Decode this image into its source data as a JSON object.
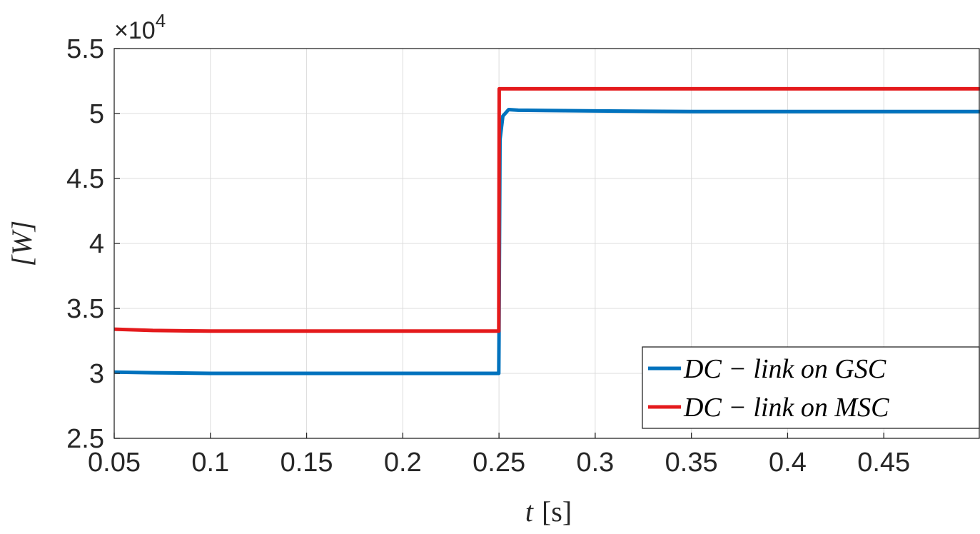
{
  "chart_data": {
    "type": "line",
    "title": "",
    "xlabel_var": "t",
    "xlabel_unit": "[s]",
    "ylabel": "[W]",
    "y_exponent_label": "×10",
    "y_exponent_power": "4",
    "xlim": [
      0.05,
      0.5
    ],
    "ylim": [
      2.5,
      5.5
    ],
    "x_ticks": [
      0.05,
      0.1,
      0.15,
      0.2,
      0.25,
      0.3,
      0.35,
      0.4,
      0.45
    ],
    "x_tick_labels": [
      "0.05",
      "0.1",
      "0.15",
      "0.2",
      "0.25",
      "0.3",
      "0.35",
      "0.4",
      "0.45"
    ],
    "y_ticks": [
      2.5,
      3,
      3.5,
      4,
      4.5,
      5,
      5.5
    ],
    "y_tick_labels": [
      "2.5",
      "3",
      "3.5",
      "4",
      "4.5",
      "5",
      "5.5"
    ],
    "grid": true,
    "legend_position": "bottom-right",
    "series": [
      {
        "name": "DC − link on GSC",
        "color": "#0072BD",
        "x": [
          0.05,
          0.07,
          0.1,
          0.15,
          0.2,
          0.2499,
          0.25,
          0.2505,
          0.252,
          0.255,
          0.26,
          0.3,
          0.35,
          0.4,
          0.45,
          0.5
        ],
        "y": [
          3.01,
          3.005,
          3.0,
          3.0,
          3.0,
          3.0,
          3.25,
          4.8,
          4.98,
          5.03,
          5.025,
          5.02,
          5.015,
          5.015,
          5.015,
          5.015
        ]
      },
      {
        "name": "DC − link on MSC",
        "color": "#E41A1C",
        "x": [
          0.05,
          0.07,
          0.1,
          0.15,
          0.2,
          0.2499,
          0.2501,
          0.26,
          0.3,
          0.35,
          0.4,
          0.45,
          0.5
        ],
        "y": [
          3.34,
          3.33,
          3.325,
          3.325,
          3.325,
          3.325,
          5.19,
          5.19,
          5.19,
          5.19,
          5.19,
          5.19,
          5.19
        ]
      }
    ]
  }
}
